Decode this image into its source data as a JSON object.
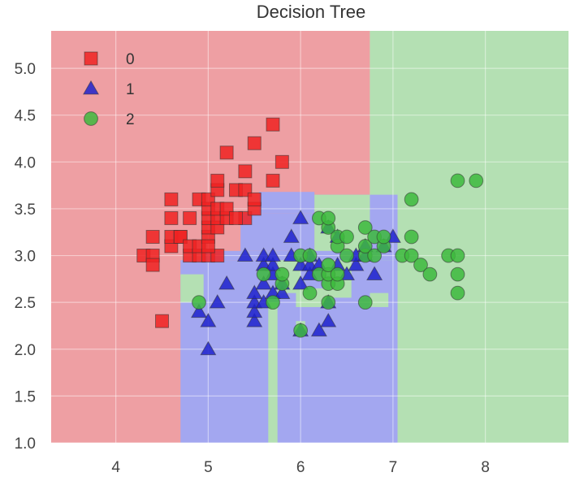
{
  "chart_data": {
    "type": "scatter",
    "title": "Decision Tree",
    "xlabel": "",
    "ylabel": "",
    "xlim": [
      3.3,
      8.9
    ],
    "ylim": [
      1.0,
      5.4
    ],
    "xticks": [
      4,
      5,
      6,
      7,
      8
    ],
    "yticks": [
      1.0,
      1.5,
      2.0,
      2.5,
      3.0,
      3.5,
      4.0,
      4.5,
      5.0
    ],
    "grid": true,
    "legend_position": "top-left",
    "region_colors": {
      "0": "#ee9fa3",
      "1": "#a3a7f0",
      "2": "#b4e0b3"
    },
    "regions": [
      {
        "class": "0",
        "x": [
          3.3,
          6.75
        ],
        "y": [
          1.0,
          5.4
        ]
      },
      {
        "class": "2",
        "x": [
          6.75,
          8.9
        ],
        "y": [
          1.0,
          5.4
        ]
      },
      {
        "class": "1",
        "x": [
          4.7,
          7.05
        ],
        "y": [
          1.0,
          2.95
        ]
      },
      {
        "class": "1",
        "x": [
          4.95,
          7.05
        ],
        "y": [
          2.95,
          3.05
        ]
      },
      {
        "class": "1",
        "x": [
          5.35,
          6.15
        ],
        "y": [
          3.05,
          3.45
        ]
      },
      {
        "class": "1",
        "x": [
          5.55,
          6.15
        ],
        "y": [
          3.45,
          3.68
        ]
      },
      {
        "class": "1",
        "x": [
          6.15,
          7.05
        ],
        "y": [
          3.05,
          3.65
        ]
      },
      {
        "class": "2",
        "x": [
          7.05,
          8.9
        ],
        "y": [
          1.0,
          3.7
        ]
      },
      {
        "class": "2",
        "x": [
          4.7,
          4.95
        ],
        "y": [
          2.5,
          2.8
        ]
      },
      {
        "class": "2",
        "x": [
          5.65,
          5.75
        ],
        "y": [
          1.0,
          2.5
        ]
      },
      {
        "class": "2",
        "x": [
          6.15,
          6.75
        ],
        "y": [
          3.05,
          3.65
        ]
      },
      {
        "class": "2",
        "x": [
          5.75,
          6.0
        ],
        "y": [
          2.6,
          2.95
        ]
      },
      {
        "class": "2",
        "x": [
          6.25,
          6.55
        ],
        "y": [
          2.55,
          2.95
        ]
      },
      {
        "class": "2",
        "x": [
          6.75,
          6.95
        ],
        "y": [
          2.45,
          2.6
        ]
      },
      {
        "class": "2",
        "x": [
          5.95,
          6.25
        ],
        "y": [
          2.45,
          2.65
        ]
      },
      {
        "class": "2",
        "x": [
          5.95,
          6.05
        ],
        "y": [
          2.15,
          2.3
        ]
      }
    ],
    "series": [
      {
        "name": "0",
        "marker": "square",
        "color": "#ee2222",
        "points": [
          [
            4.3,
            3.0
          ],
          [
            4.4,
            3.0
          ],
          [
            4.4,
            2.9
          ],
          [
            4.4,
            3.2
          ],
          [
            4.5,
            2.3
          ],
          [
            4.6,
            3.1
          ],
          [
            4.6,
            3.2
          ],
          [
            4.6,
            3.4
          ],
          [
            4.6,
            3.6
          ],
          [
            4.7,
            3.2
          ],
          [
            4.7,
            3.2
          ],
          [
            4.8,
            3.0
          ],
          [
            4.8,
            3.1
          ],
          [
            4.8,
            3.4
          ],
          [
            4.9,
            3.0
          ],
          [
            4.9,
            3.1
          ],
          [
            4.9,
            3.6
          ],
          [
            5.0,
            3.0
          ],
          [
            5.0,
            3.2
          ],
          [
            5.0,
            3.3
          ],
          [
            5.0,
            3.4
          ],
          [
            5.0,
            3.5
          ],
          [
            5.0,
            3.6
          ],
          [
            5.1,
            3.3
          ],
          [
            5.1,
            3.4
          ],
          [
            5.1,
            3.5
          ],
          [
            5.1,
            3.7
          ],
          [
            5.1,
            3.8
          ],
          [
            5.2,
            3.4
          ],
          [
            5.2,
            3.5
          ],
          [
            5.2,
            4.1
          ],
          [
            5.3,
            3.7
          ],
          [
            5.4,
            3.4
          ],
          [
            5.4,
            3.7
          ],
          [
            5.4,
            3.9
          ],
          [
            5.5,
            3.5
          ],
          [
            5.5,
            4.2
          ],
          [
            5.7,
            3.8
          ],
          [
            5.7,
            4.4
          ],
          [
            5.8,
            4.0
          ],
          [
            5.1,
            3.0
          ],
          [
            5.0,
            3.1
          ],
          [
            5.3,
            3.4
          ],
          [
            5.5,
            3.6
          ]
        ]
      },
      {
        "name": "1",
        "marker": "triangle",
        "color": "#1f22cc",
        "points": [
          [
            4.9,
            2.4
          ],
          [
            5.0,
            2.0
          ],
          [
            5.0,
            2.3
          ],
          [
            5.1,
            2.5
          ],
          [
            5.2,
            2.7
          ],
          [
            5.4,
            3.0
          ],
          [
            5.5,
            2.3
          ],
          [
            5.5,
            2.4
          ],
          [
            5.5,
            2.5
          ],
          [
            5.5,
            2.6
          ],
          [
            5.6,
            2.5
          ],
          [
            5.6,
            2.7
          ],
          [
            5.6,
            2.9
          ],
          [
            5.6,
            3.0
          ],
          [
            5.7,
            2.6
          ],
          [
            5.7,
            2.8
          ],
          [
            5.7,
            2.9
          ],
          [
            5.7,
            3.0
          ],
          [
            5.8,
            2.6
          ],
          [
            5.8,
            2.7
          ],
          [
            5.9,
            3.0
          ],
          [
            5.9,
            3.2
          ],
          [
            6.0,
            2.2
          ],
          [
            6.0,
            2.7
          ],
          [
            6.0,
            2.9
          ],
          [
            6.0,
            3.4
          ],
          [
            6.1,
            2.8
          ],
          [
            6.1,
            2.9
          ],
          [
            6.1,
            3.0
          ],
          [
            6.2,
            2.2
          ],
          [
            6.2,
            2.9
          ],
          [
            6.3,
            2.3
          ],
          [
            6.3,
            2.5
          ],
          [
            6.3,
            3.3
          ],
          [
            6.4,
            2.9
          ],
          [
            6.4,
            3.2
          ],
          [
            6.5,
            2.8
          ],
          [
            6.6,
            2.9
          ],
          [
            6.6,
            3.0
          ],
          [
            6.7,
            3.0
          ],
          [
            6.7,
            3.1
          ],
          [
            6.8,
            2.8
          ],
          [
            6.9,
            3.1
          ],
          [
            7.0,
            3.2
          ]
        ]
      },
      {
        "name": "2",
        "marker": "circle",
        "color": "#3db83d",
        "points": [
          [
            4.9,
            2.5
          ],
          [
            5.6,
            2.8
          ],
          [
            5.7,
            2.5
          ],
          [
            5.8,
            2.7
          ],
          [
            5.8,
            2.8
          ],
          [
            6.0,
            2.2
          ],
          [
            6.0,
            3.0
          ],
          [
            6.1,
            2.6
          ],
          [
            6.1,
            3.0
          ],
          [
            6.2,
            2.8
          ],
          [
            6.2,
            3.4
          ],
          [
            6.3,
            2.5
          ],
          [
            6.3,
            2.7
          ],
          [
            6.3,
            2.8
          ],
          [
            6.3,
            2.9
          ],
          [
            6.3,
            3.3
          ],
          [
            6.3,
            3.4
          ],
          [
            6.4,
            2.7
          ],
          [
            6.4,
            2.8
          ],
          [
            6.4,
            3.1
          ],
          [
            6.4,
            3.2
          ],
          [
            6.5,
            3.0
          ],
          [
            6.5,
            3.2
          ],
          [
            6.7,
            2.5
          ],
          [
            6.7,
            3.0
          ],
          [
            6.7,
            3.1
          ],
          [
            6.7,
            3.3
          ],
          [
            6.8,
            3.0
          ],
          [
            6.8,
            3.2
          ],
          [
            6.9,
            3.1
          ],
          [
            6.9,
            3.2
          ],
          [
            7.1,
            3.0
          ],
          [
            7.2,
            3.0
          ],
          [
            7.2,
            3.2
          ],
          [
            7.2,
            3.6
          ],
          [
            7.3,
            2.9
          ],
          [
            7.4,
            2.8
          ],
          [
            7.6,
            3.0
          ],
          [
            7.7,
            2.6
          ],
          [
            7.7,
            2.8
          ],
          [
            7.7,
            3.0
          ],
          [
            7.7,
            3.8
          ],
          [
            7.9,
            3.8
          ]
        ]
      }
    ]
  }
}
